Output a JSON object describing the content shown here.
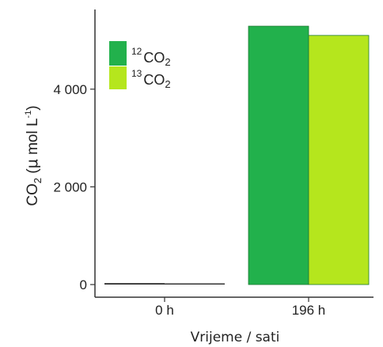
{
  "chart_data": {
    "type": "bar",
    "categories": [
      "0 h",
      "196 h"
    ],
    "series": [
      {
        "name": "12CO2",
        "name_parts": {
          "sup": "12",
          "base": "CO",
          "sub": "2"
        },
        "color": "#22b14c",
        "values": [
          30,
          5290
        ]
      },
      {
        "name": "13CO2",
        "name_parts": {
          "sup": "13",
          "base": "CO",
          "sub": "2"
        },
        "color": "#b5e61d",
        "values": [
          5,
          5100
        ]
      }
    ],
    "yticks": [
      0,
      2000,
      4000
    ],
    "ytick_labels": [
      "0",
      "2 000",
      "4 000"
    ],
    "ylim": [
      -200,
      5600
    ],
    "ylabel_parts": {
      "base": "CO",
      "sub": "2",
      "open": " (",
      "mu": "μ",
      "mid": " mol L",
      "sup": "-1",
      "close": ")"
    },
    "xlabel": "Vrijeme / sati",
    "legend": "top-left",
    "grid": false
  }
}
